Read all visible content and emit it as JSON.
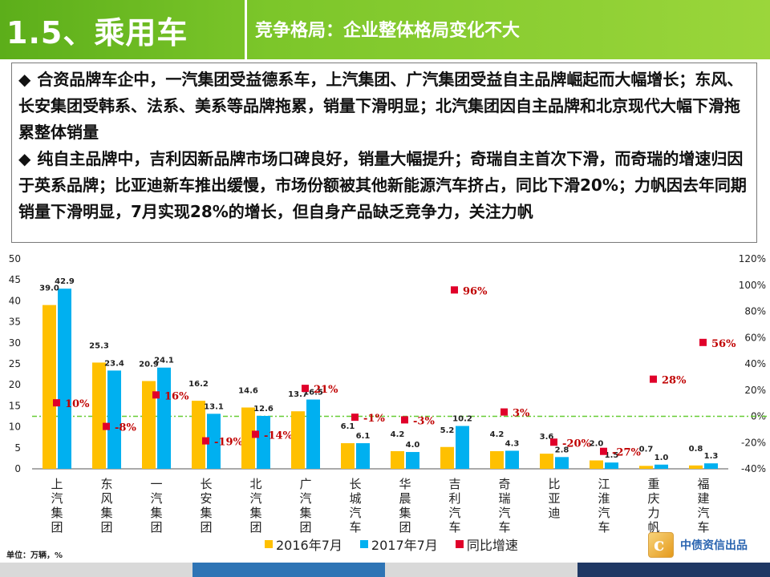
{
  "header": {
    "section_title": "1.5、乘用车",
    "subtitle": "竞争格局：企业整体格局变化不大"
  },
  "text": {
    "paragraph1": "合资品牌车企中，一汽集团受益德系车，上汽集团、广汽集团受益自主品牌崛起而大幅增长；东风、长安集团受韩系、法系、美系等品牌拖累，销量下滑明显；北汽集团因自主品牌和北京现代大幅下滑拖累整体销量",
    "paragraph2": "纯自主品牌中，吉利因新品牌市场口碑良好，销量大幅提升；奇瑞自主首次下滑，而奇瑞的增速归因于英系品牌；比亚迪新车推出缓慢，市场份额被其他新能源汽车挤占，同比下滑20%；力帆因去年同期销量下滑明显，7月实现28%的增长，但自身产品缺乏竞争力，关注力帆",
    "bullet": "◆"
  },
  "chart_data": {
    "type": "bar",
    "categories": [
      "上汽集团",
      "东风集团",
      "一汽集团",
      "长安集团",
      "北汽集团",
      "广汽集团",
      "长城汽车",
      "华晨集团",
      "吉利汽车",
      "奇瑞汽车",
      "比亚迪",
      "江淮汽车",
      "重庆力帆",
      "福建汽车"
    ],
    "series": [
      {
        "name": "2016年7月",
        "type": "bar",
        "axis": "left",
        "color": "#ffc000",
        "values": [
          39.0,
          25.3,
          20.9,
          16.2,
          14.6,
          13.7,
          6.1,
          4.2,
          5.2,
          4.2,
          3.6,
          2.0,
          0.7,
          0.8
        ],
        "labels": [
          "39.0",
          "25.3",
          "20.9",
          "16.2",
          "14.6",
          "13.7",
          "6.1",
          "4.2",
          "5.2",
          "4.2",
          "3.6",
          "2.0",
          "0.7",
          "0.8"
        ]
      },
      {
        "name": "2017年7月",
        "type": "bar",
        "axis": "left",
        "color": "#00b0f0",
        "values": [
          42.9,
          23.4,
          24.1,
          13.1,
          12.6,
          16.5,
          6.1,
          4.0,
          10.2,
          4.3,
          2.8,
          1.5,
          1.0,
          1.3
        ],
        "labels": [
          "42.9",
          "23.4",
          "24.1",
          "13.1",
          "12.6",
          "16.5",
          "6.1",
          "4.0",
          "10.2",
          "4.3",
          "2.8",
          "1.5",
          "1.0",
          "1.3"
        ]
      },
      {
        "name": "同比增速",
        "type": "scatter",
        "axis": "right",
        "color": "#e0002a",
        "values": [
          10,
          -8,
          16,
          -19,
          -14,
          21,
          -1,
          -3,
          96,
          3,
          -20,
          -27,
          28,
          56
        ],
        "labels": [
          "10%",
          "-8%",
          "16%",
          "-19%",
          "-14%",
          "21%",
          "-1%",
          "-3%",
          "96%",
          "3%",
          "-20%",
          "-27%",
          "28%",
          "56%"
        ]
      }
    ],
    "left_axis": {
      "ylim": [
        0,
        50
      ],
      "ticks": [
        "0",
        "5",
        "10",
        "15",
        "20",
        "25",
        "30",
        "35",
        "40",
        "45",
        "50"
      ]
    },
    "right_axis": {
      "ylim": [
        -40,
        120
      ],
      "ticks": [
        "-40%",
        "-20%",
        "0%",
        "20%",
        "40%",
        "60%",
        "80%",
        "100%",
        "120%"
      ]
    },
    "zero_line_color": "#66cc33",
    "legend_position": "bottom"
  },
  "footer": {
    "unit_note": "单位：万辆，%",
    "brand": "中债资信出品",
    "brand_logo_char": "c"
  },
  "colors": {
    "header_green": "#7cc62a",
    "bar_2016": "#ffc000",
    "bar_2017": "#00b0f0",
    "marker_red": "#e0002a",
    "label_red": "#c00000"
  }
}
